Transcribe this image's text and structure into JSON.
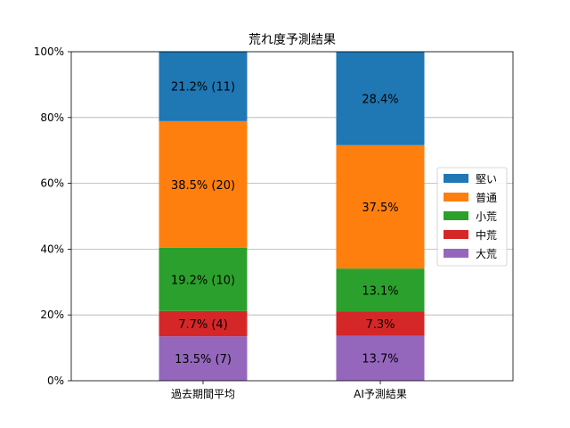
{
  "chart_data": {
    "type": "bar",
    "stacked": true,
    "title": "荒れ度予測結果",
    "xlabel": "",
    "ylabel": "",
    "categories": [
      "過去期間平均",
      "AI予測結果"
    ],
    "ylim": [
      0,
      100
    ],
    "y_ticks": [
      "0%",
      "20%",
      "40%",
      "60%",
      "80%",
      "100%"
    ],
    "grid": "horizontal",
    "legend_position": "right",
    "series": [
      {
        "name": "大荒",
        "color": "#9467bd",
        "values": [
          13.5,
          13.7
        ],
        "labels": [
          "13.5% (7)",
          "13.7%"
        ]
      },
      {
        "name": "中荒",
        "color": "#d62728",
        "values": [
          7.7,
          7.3
        ],
        "labels": [
          "7.7% (4)",
          "7.3%"
        ]
      },
      {
        "name": "小荒",
        "color": "#2ca02c",
        "values": [
          19.2,
          13.1
        ],
        "labels": [
          "19.2% (10)",
          "13.1%"
        ]
      },
      {
        "name": "普通",
        "color": "#ff7f0e",
        "values": [
          38.5,
          37.5
        ],
        "labels": [
          "38.5% (20)",
          "37.5%"
        ]
      },
      {
        "name": "堅い",
        "color": "#1f77b4",
        "values": [
          21.2,
          28.4
        ],
        "labels": [
          "21.2% (11)",
          "28.4%"
        ]
      }
    ],
    "legend_order": [
      "堅い",
      "普通",
      "小荒",
      "中荒",
      "大荒"
    ]
  }
}
